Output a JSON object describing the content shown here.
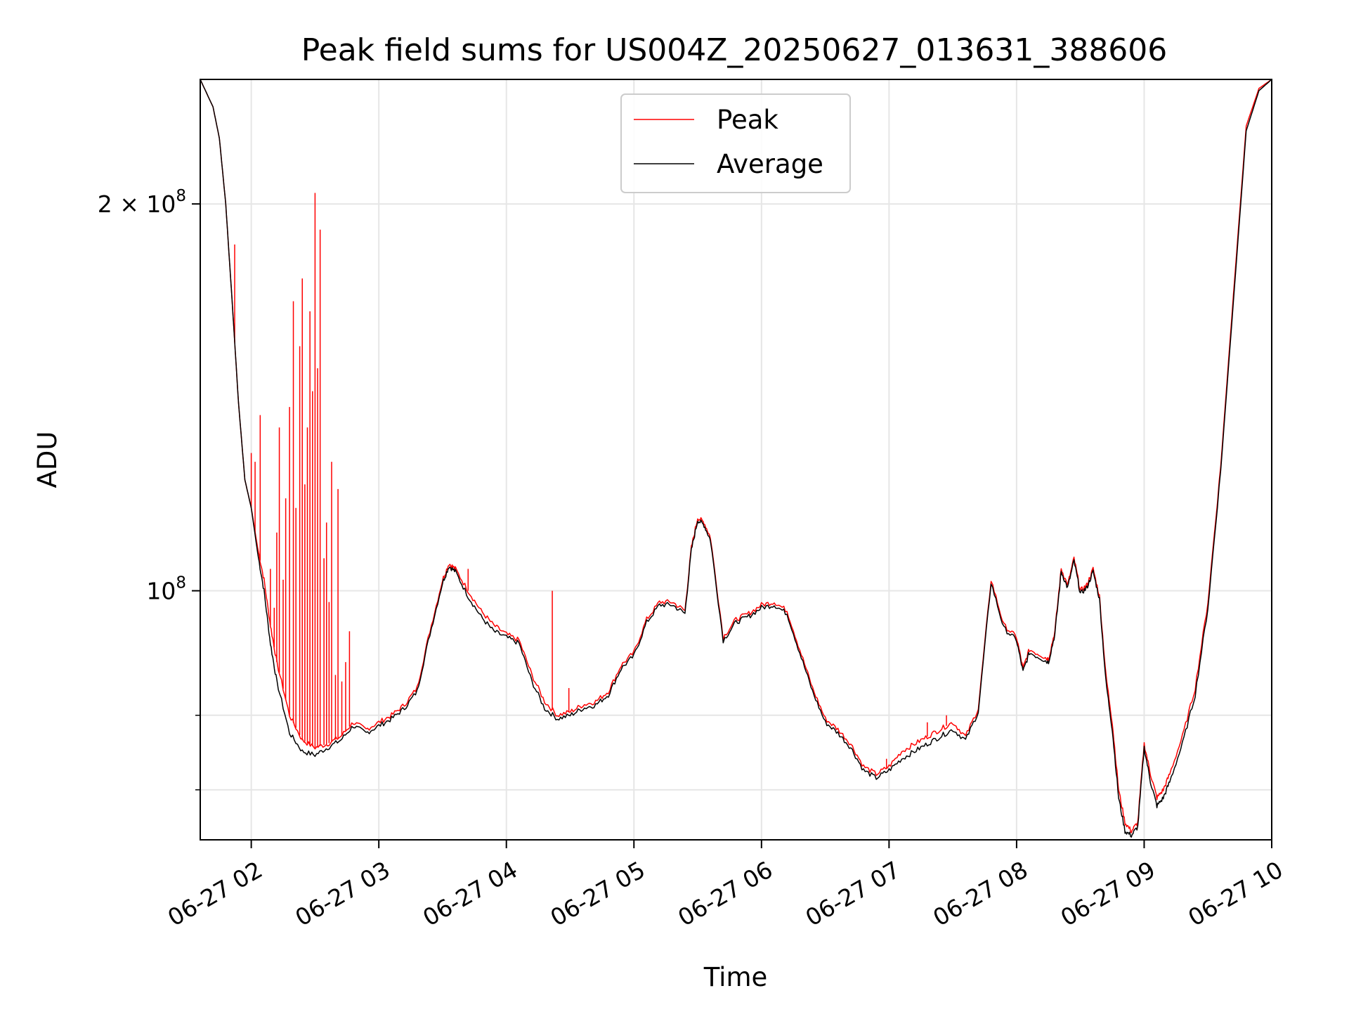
{
  "chart_data": {
    "type": "line",
    "title": "Peak field sums for US004Z_20250627_013631_388606",
    "xlabel": "Time",
    "ylabel": "ADU",
    "yscale": "log",
    "xlim": [
      1.6,
      10.0
    ],
    "ylim": [
      64000000,
      250000000
    ],
    "x_ticks": [
      {
        "value": 2,
        "label": "06-27 02"
      },
      {
        "value": 3,
        "label": "06-27 03"
      },
      {
        "value": 4,
        "label": "06-27 04"
      },
      {
        "value": 5,
        "label": "06-27 05"
      },
      {
        "value": 6,
        "label": "06-27 06"
      },
      {
        "value": 7,
        "label": "06-27 07"
      },
      {
        "value": 8,
        "label": "06-27 08"
      },
      {
        "value": 9,
        "label": "06-27 09"
      },
      {
        "value": 10,
        "label": "06-27 10"
      }
    ],
    "y_ticks_major": [
      {
        "value": 100000000,
        "mantissa": "",
        "exponent": "8",
        "label": "10"
      },
      {
        "value": 200000000,
        "mantissa": "2 × ",
        "exponent": "8",
        "label": "10"
      }
    ],
    "y_ticks_minor": [
      70000000,
      80000000
    ],
    "grid": true,
    "legend_position": "upper-center",
    "x_unit": "hour of 2025-06-27",
    "series": [
      {
        "name": "Peak",
        "color": "#ff0000",
        "x": [
          1.6,
          1.7,
          1.75,
          1.8,
          1.85,
          1.9,
          1.95,
          2.0,
          2.05,
          2.1,
          2.15,
          2.2,
          2.3,
          2.4,
          2.5,
          2.6,
          2.7,
          2.8,
          2.9,
          3.0,
          3.1,
          3.2,
          3.3,
          3.4,
          3.5,
          3.55,
          3.6,
          3.7,
          3.8,
          3.9,
          4.0,
          4.1,
          4.2,
          4.3,
          4.4,
          4.5,
          4.6,
          4.7,
          4.8,
          4.9,
          5.0,
          5.1,
          5.2,
          5.3,
          5.4,
          5.45,
          5.5,
          5.55,
          5.6,
          5.7,
          5.8,
          5.9,
          6.0,
          6.1,
          6.2,
          6.3,
          6.4,
          6.5,
          6.6,
          6.7,
          6.8,
          6.9,
          7.0,
          7.1,
          7.2,
          7.3,
          7.4,
          7.5,
          7.6,
          7.7,
          7.8,
          7.9,
          8.0,
          8.05,
          8.1,
          8.2,
          8.25,
          8.3,
          8.35,
          8.4,
          8.45,
          8.5,
          8.55,
          8.6,
          8.65,
          8.7,
          8.75,
          8.8,
          8.85,
          8.9,
          8.95,
          9.0,
          9.05,
          9.1,
          9.15,
          9.2,
          9.3,
          9.4,
          9.5,
          9.6,
          9.7,
          9.8,
          9.9,
          10.0
        ],
        "y": [
          250000000,
          238000000,
          225000000,
          200000000,
          168000000,
          140000000,
          122000000,
          116000000,
          108000000,
          102000000,
          94000000,
          88000000,
          80000000,
          76500000,
          75500000,
          76000000,
          77000000,
          79000000,
          78000000,
          79000000,
          80000000,
          81500000,
          84000000,
          93000000,
          102000000,
          105000000,
          104000000,
          100000000,
          96500000,
          94000000,
          92500000,
          91500000,
          86000000,
          82000000,
          80000000,
          80500000,
          81500000,
          82000000,
          83500000,
          87500000,
          89500000,
          95000000,
          98000000,
          98000000,
          96500000,
          108000000,
          114000000,
          113000000,
          110000000,
          92000000,
          95000000,
          96000000,
          97500000,
          98000000,
          96500000,
          90000000,
          84000000,
          79500000,
          78000000,
          76000000,
          73000000,
          72000000,
          73000000,
          75000000,
          76000000,
          77000000,
          78000000,
          79000000,
          77000000,
          81000000,
          102000000,
          94000000,
          92000000,
          87000000,
          90000000,
          89000000,
          88500000,
          93000000,
          104000000,
          101000000,
          106000000,
          100000000,
          101000000,
          104000000,
          99000000,
          86000000,
          79000000,
          70000000,
          66000000,
          65000000,
          66000000,
          76000000,
          72000000,
          69000000,
          70000000,
          72000000,
          77000000,
          84000000,
          98000000,
          125000000,
          170000000,
          230000000,
          246000000,
          250000000
        ],
        "spikes": [
          {
            "x": 1.87,
            "y": 186000000
          },
          {
            "x": 2.0,
            "y": 128000000
          },
          {
            "x": 2.03,
            "y": 126000000
          },
          {
            "x": 2.07,
            "y": 137000000
          },
          {
            "x": 2.15,
            "y": 104000000
          },
          {
            "x": 2.18,
            "y": 97000000
          },
          {
            "x": 2.2,
            "y": 111000000
          },
          {
            "x": 2.22,
            "y": 134000000
          },
          {
            "x": 2.25,
            "y": 102000000
          },
          {
            "x": 2.27,
            "y": 118000000
          },
          {
            "x": 2.3,
            "y": 139000000
          },
          {
            "x": 2.33,
            "y": 168000000
          },
          {
            "x": 2.35,
            "y": 116000000
          },
          {
            "x": 2.38,
            "y": 155000000
          },
          {
            "x": 2.4,
            "y": 175000000
          },
          {
            "x": 2.42,
            "y": 121000000
          },
          {
            "x": 2.44,
            "y": 134000000
          },
          {
            "x": 2.46,
            "y": 165000000
          },
          {
            "x": 2.48,
            "y": 143000000
          },
          {
            "x": 2.5,
            "y": 204000000
          },
          {
            "x": 2.52,
            "y": 149000000
          },
          {
            "x": 2.54,
            "y": 191000000
          },
          {
            "x": 2.57,
            "y": 106000000
          },
          {
            "x": 2.59,
            "y": 113000000
          },
          {
            "x": 2.61,
            "y": 98000000
          },
          {
            "x": 2.63,
            "y": 126000000
          },
          {
            "x": 2.66,
            "y": 86000000
          },
          {
            "x": 2.68,
            "y": 120000000
          },
          {
            "x": 2.71,
            "y": 85000000
          },
          {
            "x": 2.74,
            "y": 88000000
          },
          {
            "x": 2.77,
            "y": 93000000
          },
          {
            "x": 3.7,
            "y": 104000000
          },
          {
            "x": 4.36,
            "y": 100000000
          },
          {
            "x": 4.49,
            "y": 84000000
          },
          {
            "x": 6.98,
            "y": 74000000
          },
          {
            "x": 7.3,
            "y": 79000000
          },
          {
            "x": 7.45,
            "y": 80000000
          }
        ]
      },
      {
        "name": "Average",
        "color": "#000000",
        "x": [
          1.6,
          1.7,
          1.75,
          1.8,
          1.85,
          1.9,
          1.95,
          2.0,
          2.05,
          2.1,
          2.15,
          2.2,
          2.3,
          2.4,
          2.5,
          2.6,
          2.7,
          2.8,
          2.9,
          3.0,
          3.1,
          3.2,
          3.3,
          3.4,
          3.5,
          3.55,
          3.6,
          3.7,
          3.8,
          3.9,
          4.0,
          4.1,
          4.2,
          4.3,
          4.4,
          4.5,
          4.6,
          4.7,
          4.8,
          4.9,
          5.0,
          5.1,
          5.2,
          5.3,
          5.4,
          5.45,
          5.5,
          5.55,
          5.6,
          5.7,
          5.8,
          5.9,
          6.0,
          6.1,
          6.2,
          6.3,
          6.4,
          6.5,
          6.6,
          6.7,
          6.8,
          6.9,
          7.0,
          7.1,
          7.2,
          7.3,
          7.4,
          7.5,
          7.6,
          7.7,
          7.8,
          7.9,
          8.0,
          8.05,
          8.1,
          8.2,
          8.25,
          8.3,
          8.35,
          8.4,
          8.45,
          8.5,
          8.55,
          8.6,
          8.65,
          8.7,
          8.75,
          8.8,
          8.85,
          8.9,
          8.95,
          9.0,
          9.05,
          9.1,
          9.15,
          9.2,
          9.3,
          9.4,
          9.5,
          9.6,
          9.7,
          9.8,
          9.9,
          10.0
        ],
        "y": [
          250000000,
          238000000,
          225000000,
          200000000,
          168000000,
          140000000,
          122000000,
          116000000,
          107000000,
          100000000,
          91000000,
          85000000,
          77500000,
          75000000,
          74500000,
          75500000,
          76500000,
          78500000,
          77500000,
          78500000,
          79500000,
          81000000,
          83500000,
          92500000,
          101500000,
          104500000,
          103500000,
          99000000,
          95500000,
          93000000,
          92000000,
          91000000,
          85000000,
          81000000,
          79500000,
          80000000,
          81000000,
          81500000,
          83000000,
          87000000,
          89000000,
          94500000,
          97500000,
          97500000,
          96000000,
          107500000,
          113500000,
          112500000,
          109500000,
          91500000,
          94500000,
          95500000,
          97000000,
          97500000,
          96000000,
          89500000,
          83500000,
          79000000,
          77500000,
          75500000,
          72500000,
          71500000,
          72500000,
          74000000,
          75000000,
          76000000,
          77000000,
          78000000,
          76500000,
          80500000,
          101500000,
          93500000,
          91500000,
          86500000,
          89500000,
          88500000,
          88000000,
          92500000,
          103500000,
          100500000,
          105500000,
          99500000,
          100500000,
          103500000,
          98500000,
          85000000,
          78000000,
          69000000,
          65000000,
          64500000,
          65500000,
          75500000,
          71000000,
          68000000,
          69000000,
          71000000,
          76000000,
          83000000,
          97000000,
          124000000,
          168000000,
          228000000,
          245000000,
          250000000
        ]
      }
    ]
  }
}
